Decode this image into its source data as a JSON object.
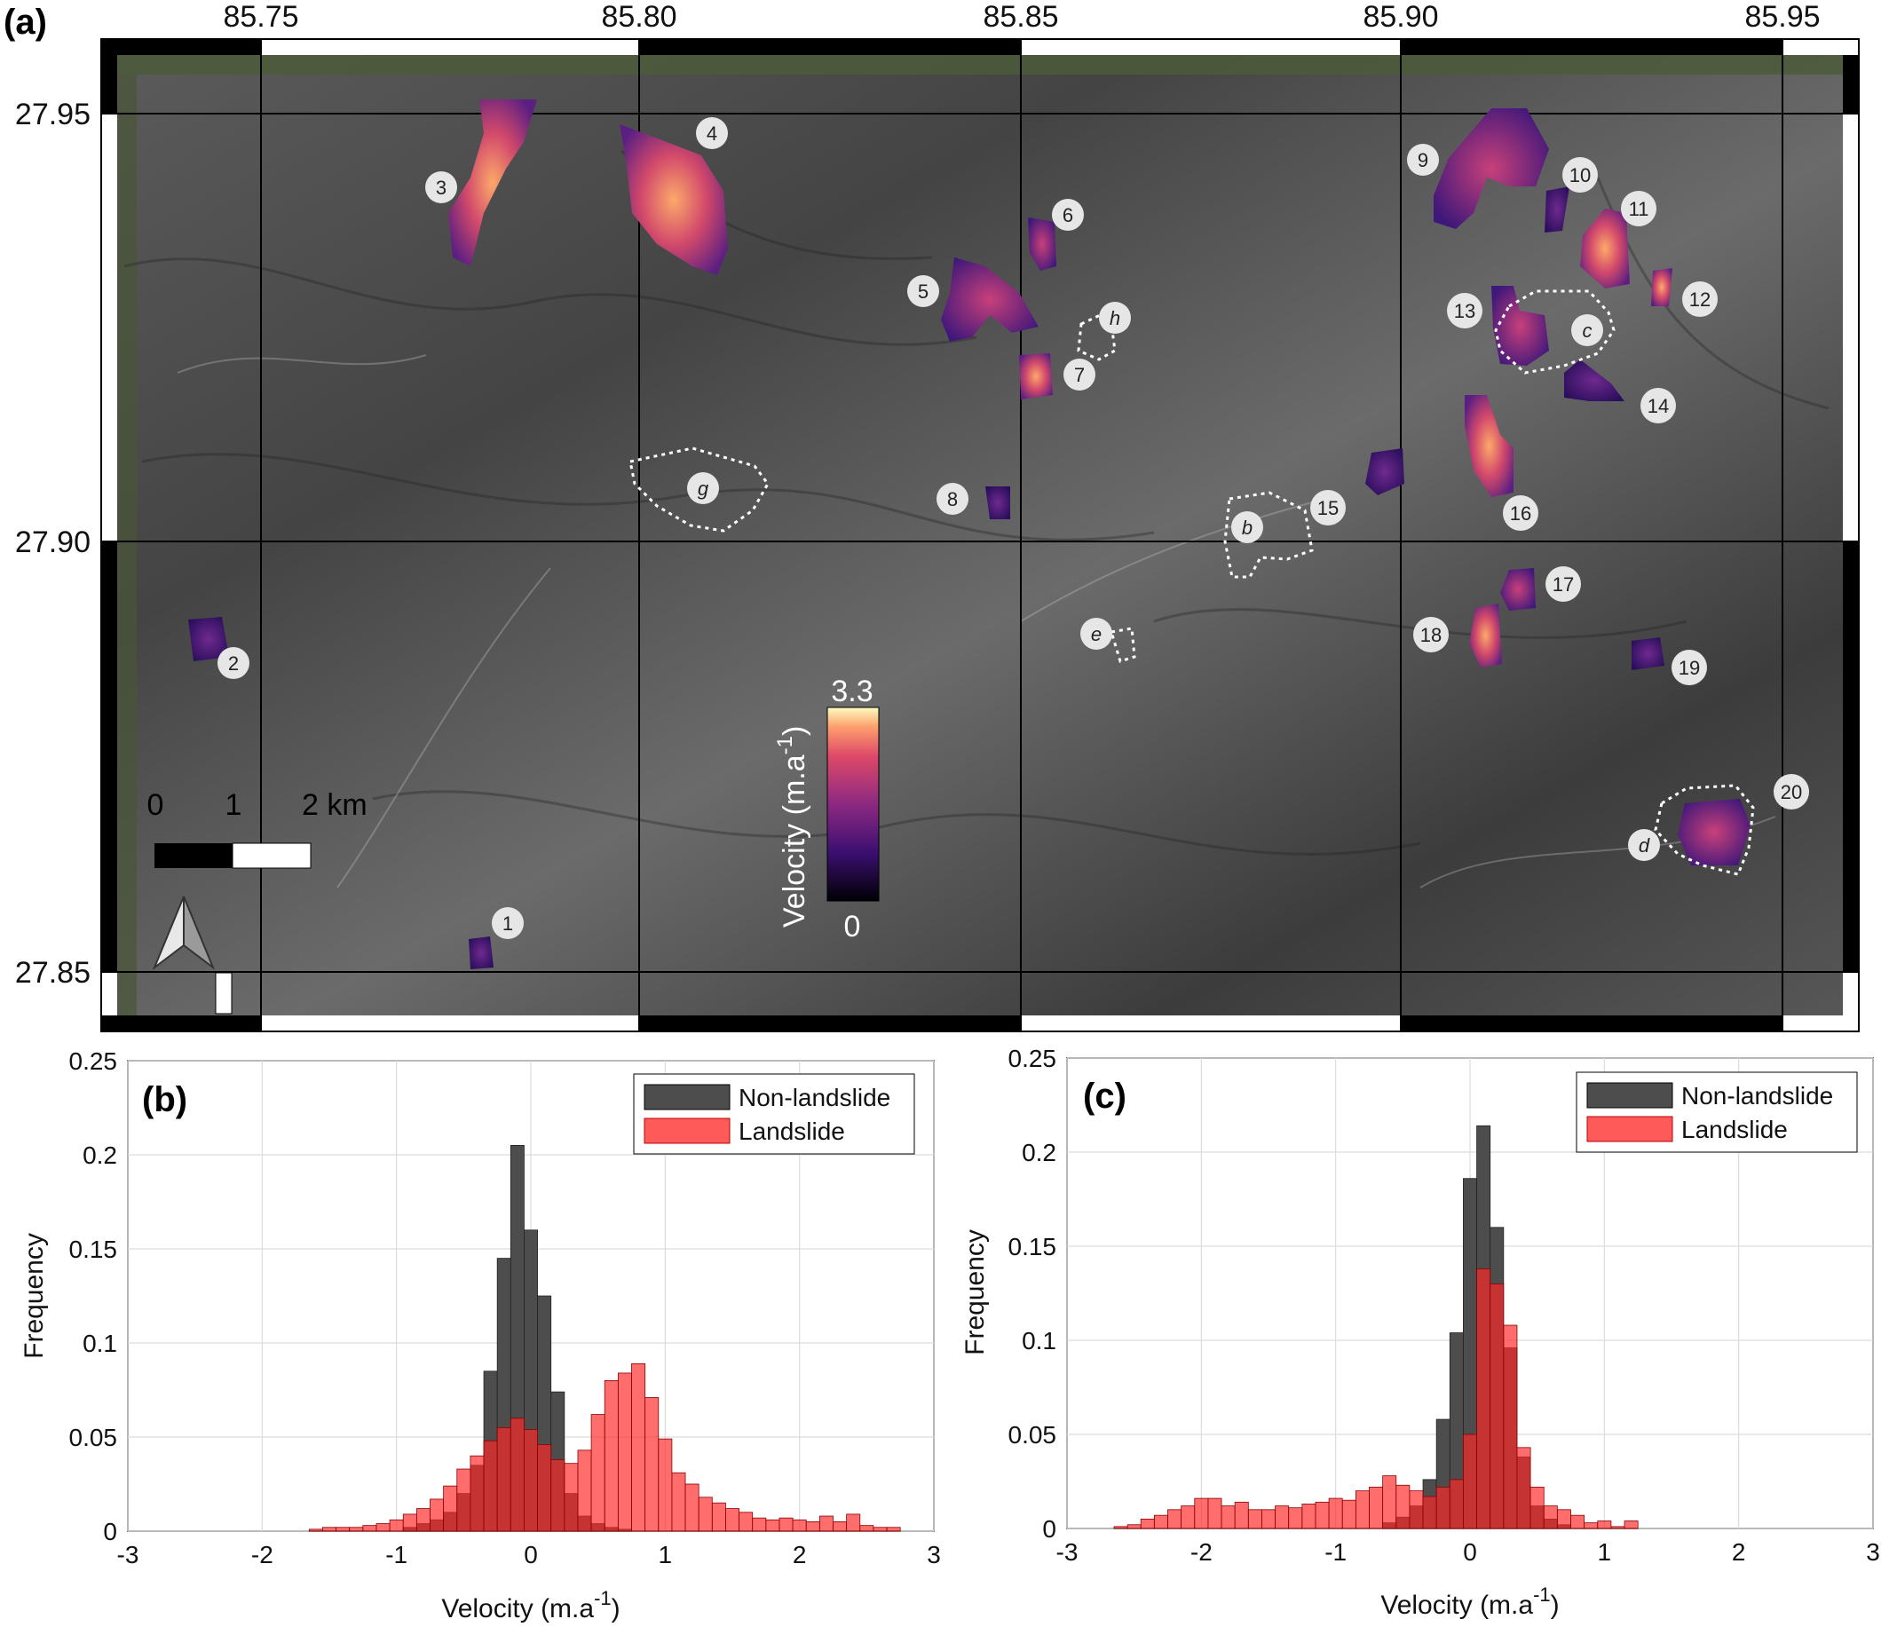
{
  "panel_a": {
    "label": "(a)",
    "lon_ticks": [
      "85.75",
      "85.80",
      "85.85",
      "85.90",
      "85.95"
    ],
    "lat_ticks": [
      "27.95",
      "27.90",
      "27.85"
    ],
    "landslide_labels": [
      "1",
      "2",
      "3",
      "4",
      "5",
      "6",
      "7",
      "8",
      "9",
      "10",
      "11",
      "12",
      "13",
      "14",
      "15",
      "16",
      "17",
      "18",
      "19",
      "20"
    ],
    "zone_labels": [
      "b",
      "c",
      "d",
      "e",
      "g",
      "h"
    ],
    "scale_bar": {
      "labels": [
        "0",
        "1",
        "2 km"
      ]
    },
    "colorbar": {
      "title": "Velocity (m.a",
      "title_sup": "-1",
      "title_end": ")",
      "max": "3.3",
      "min": "0"
    },
    "colors": {
      "low": "#0b0630",
      "mid": "#7a2a8c",
      "high": "#f46d43",
      "top": "#fde8b4",
      "dotted_outline": "#ffffff"
    }
  },
  "panel_b": {
    "label": "(b)"
  },
  "panel_c": {
    "label": "(c)"
  },
  "chart_data": [
    {
      "type": "bar",
      "panel": "(b)",
      "xlabel": "Velocity (m.a",
      "xlabel_sup": "-1",
      "xlabel_end": ")",
      "ylabel": "Frequency",
      "xlim": [
        -3,
        3
      ],
      "ylim": [
        0,
        0.25
      ],
      "xticks": [
        "-3",
        "-2",
        "-1",
        "0",
        "1",
        "2",
        "3"
      ],
      "yticks": [
        "0",
        "0.05",
        "0.1",
        "0.15",
        "0.2",
        "0.25"
      ],
      "grid": true,
      "legend_position": "top-right",
      "bin_width": 0.1,
      "series": [
        {
          "name": "Non-landslide",
          "color": "#4d4d4d",
          "x": [
            -0.9,
            -0.8,
            -0.7,
            -0.6,
            -0.5,
            -0.4,
            -0.3,
            -0.2,
            -0.1,
            0.0,
            0.1,
            0.2,
            0.3,
            0.4,
            0.5,
            0.6,
            0.7
          ],
          "values": [
            0.002,
            0.004,
            0.006,
            0.01,
            0.02,
            0.035,
            0.085,
            0.145,
            0.205,
            0.16,
            0.125,
            0.074,
            0.02,
            0.008,
            0.004,
            0.002,
            0.001
          ]
        },
        {
          "name": "Landslide",
          "color": "#ff5a5a",
          "x": [
            -1.6,
            -1.5,
            -1.4,
            -1.3,
            -1.2,
            -1.1,
            -1.0,
            -0.9,
            -0.8,
            -0.7,
            -0.6,
            -0.5,
            -0.4,
            -0.3,
            -0.2,
            -0.1,
            0.0,
            0.1,
            0.2,
            0.3,
            0.4,
            0.5,
            0.6,
            0.7,
            0.8,
            0.9,
            1.0,
            1.1,
            1.2,
            1.3,
            1.4,
            1.5,
            1.6,
            1.7,
            1.8,
            1.9,
            2.0,
            2.1,
            2.2,
            2.3,
            2.4,
            2.5,
            2.6,
            2.7
          ],
          "values": [
            0.001,
            0.002,
            0.002,
            0.002,
            0.003,
            0.004,
            0.006,
            0.009,
            0.012,
            0.017,
            0.024,
            0.033,
            0.04,
            0.048,
            0.055,
            0.06,
            0.054,
            0.046,
            0.038,
            0.036,
            0.043,
            0.062,
            0.08,
            0.084,
            0.089,
            0.071,
            0.049,
            0.031,
            0.025,
            0.018,
            0.015,
            0.012,
            0.01,
            0.007,
            0.006,
            0.007,
            0.006,
            0.005,
            0.008,
            0.005,
            0.009,
            0.003,
            0.002,
            0.002
          ]
        }
      ]
    },
    {
      "type": "bar",
      "panel": "(c)",
      "xlabel": "Velocity (m.a",
      "xlabel_sup": "-1",
      "xlabel_end": ")",
      "ylabel": "Frequency",
      "xlim": [
        -3,
        3
      ],
      "ylim": [
        0,
        0.25
      ],
      "xticks": [
        "-3",
        "-2",
        "-1",
        "0",
        "1",
        "2",
        "3"
      ],
      "yticks": [
        "0",
        "0.05",
        "0.1",
        "0.15",
        "0.2",
        "0.25"
      ],
      "grid": true,
      "legend_position": "top-right",
      "bin_width": 0.1,
      "series": [
        {
          "name": "Non-landslide",
          "color": "#4d4d4d",
          "x": [
            -0.6,
            -0.5,
            -0.4,
            -0.3,
            -0.2,
            -0.1,
            0.0,
            0.1,
            0.2,
            0.3,
            0.4,
            0.5,
            0.6,
            0.7
          ],
          "values": [
            0.003,
            0.006,
            0.012,
            0.026,
            0.058,
            0.104,
            0.186,
            0.214,
            0.16,
            0.096,
            0.038,
            0.012,
            0.005,
            0.002
          ]
        },
        {
          "name": "Landslide",
          "color": "#ff5a5a",
          "x": [
            -2.6,
            -2.5,
            -2.4,
            -2.3,
            -2.2,
            -2.1,
            -2.0,
            -1.9,
            -1.8,
            -1.7,
            -1.6,
            -1.5,
            -1.4,
            -1.3,
            -1.2,
            -1.1,
            -1.0,
            -0.9,
            -0.8,
            -0.7,
            -0.6,
            -0.5,
            -0.4,
            -0.3,
            -0.2,
            -0.1,
            0.0,
            0.1,
            0.2,
            0.3,
            0.4,
            0.5,
            0.6,
            0.7,
            0.8,
            0.9,
            1.0,
            1.1,
            1.2
          ],
          "values": [
            0.001,
            0.002,
            0.005,
            0.007,
            0.01,
            0.012,
            0.016,
            0.016,
            0.012,
            0.014,
            0.01,
            0.01,
            0.012,
            0.011,
            0.013,
            0.014,
            0.016,
            0.015,
            0.02,
            0.022,
            0.028,
            0.023,
            0.02,
            0.017,
            0.022,
            0.026,
            0.05,
            0.138,
            0.13,
            0.108,
            0.043,
            0.022,
            0.012,
            0.01,
            0.007,
            0.003,
            0.004,
            0.001,
            0.004
          ]
        }
      ]
    }
  ]
}
